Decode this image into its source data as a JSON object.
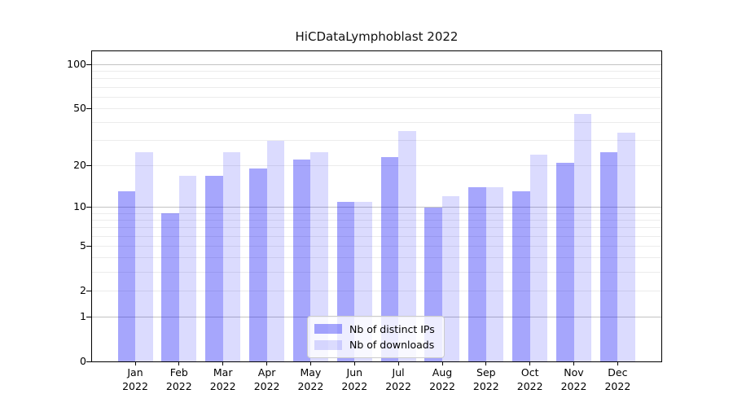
{
  "title": "HiCDataLymphoblast 2022",
  "chart_data": {
    "type": "bar",
    "title": "HiCDataLymphoblast 2022",
    "categories": [
      "Jan",
      "Feb",
      "Mar",
      "Apr",
      "May",
      "Jun",
      "Jul",
      "Aug",
      "Sep",
      "Oct",
      "Nov",
      "Dec"
    ],
    "year_label": "2022",
    "series": [
      {
        "name": "Nb of distinct IPs",
        "color": "rgba(0,0,245,0.35)",
        "values": [
          13,
          9,
          17,
          19,
          22,
          11,
          23,
          10,
          14,
          13,
          21,
          25
        ]
      },
      {
        "name": "Nb of downloads",
        "color": "rgba(0,0,245,0.14)",
        "values": [
          25,
          17,
          25,
          30,
          25,
          11,
          35,
          12,
          14,
          24,
          46,
          34
        ]
      }
    ],
    "yscale": "log1p",
    "ylabel": "",
    "xlabel": "",
    "y_ticks": [
      100,
      50,
      20,
      10,
      5,
      2,
      1,
      0
    ],
    "grid_major_values": [
      1,
      10,
      100
    ],
    "grid_minor_values": [
      2,
      3,
      4,
      5,
      6,
      7,
      8,
      9,
      20,
      30,
      40,
      50,
      60,
      70,
      80,
      90
    ],
    "legend_position": "lower center",
    "colors": {
      "distinct_ips": "rgba(0,0,245,0.35)",
      "downloads": "rgba(0,0,245,0.14)",
      "grid_minor": "#ececec",
      "grid_major": "#c3c3c3",
      "spine": "#000000"
    }
  }
}
